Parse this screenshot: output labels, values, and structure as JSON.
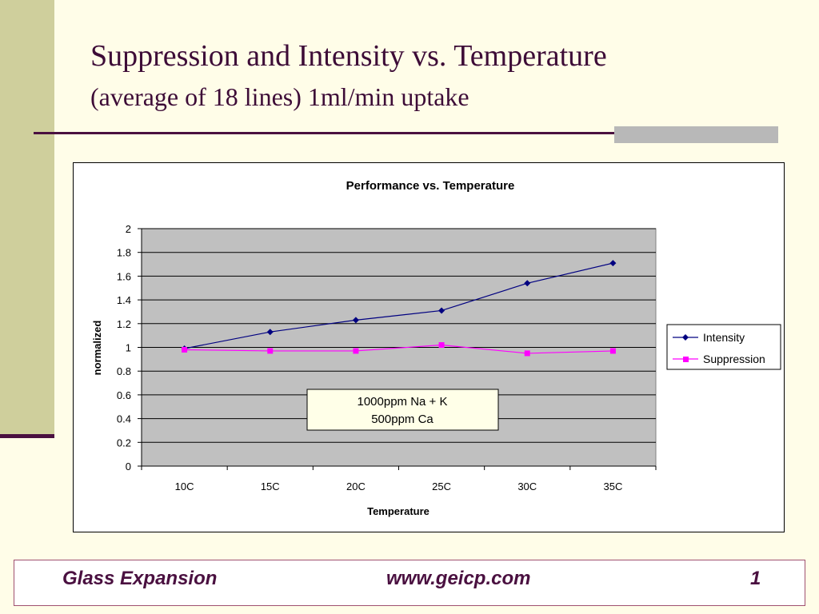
{
  "slide": {
    "title": "Suppression and Intensity vs. Temperature",
    "subtitle": "(average of 18 lines) 1ml/min uptake",
    "footer_left": "Glass Expansion",
    "footer_center": "www.geicp.com",
    "footer_right": "1"
  },
  "colors": {
    "title": "#3d0c37",
    "rule": "#4a1040",
    "plot_area": "#c0c0c0",
    "intensity": "#000080",
    "suppression": "#ff00ff"
  },
  "chart_data": {
    "type": "line",
    "title": "Performance vs. Temperature",
    "xlabel": "Temperature",
    "ylabel": "normalized",
    "categories": [
      "10C",
      "15C",
      "20C",
      "25C",
      "30C",
      "35C"
    ],
    "series": [
      {
        "name": "Intensity",
        "values": [
          0.99,
          1.13,
          1.23,
          1.31,
          1.54,
          1.71
        ],
        "color": "#000080",
        "marker": "diamond"
      },
      {
        "name": "Suppression",
        "values": [
          0.98,
          0.97,
          0.97,
          1.02,
          0.95,
          0.97
        ],
        "color": "#ff00ff",
        "marker": "square"
      }
    ],
    "ylim": [
      0,
      2
    ],
    "yticks": [
      "0",
      "0.2",
      "0.4",
      "0.6",
      "0.8",
      "1",
      "1.2",
      "1.4",
      "1.6",
      "1.8",
      "2"
    ],
    "grid": true,
    "legend": "right",
    "annotation": [
      "1000ppm Na + K",
      "500ppm Ca"
    ]
  }
}
